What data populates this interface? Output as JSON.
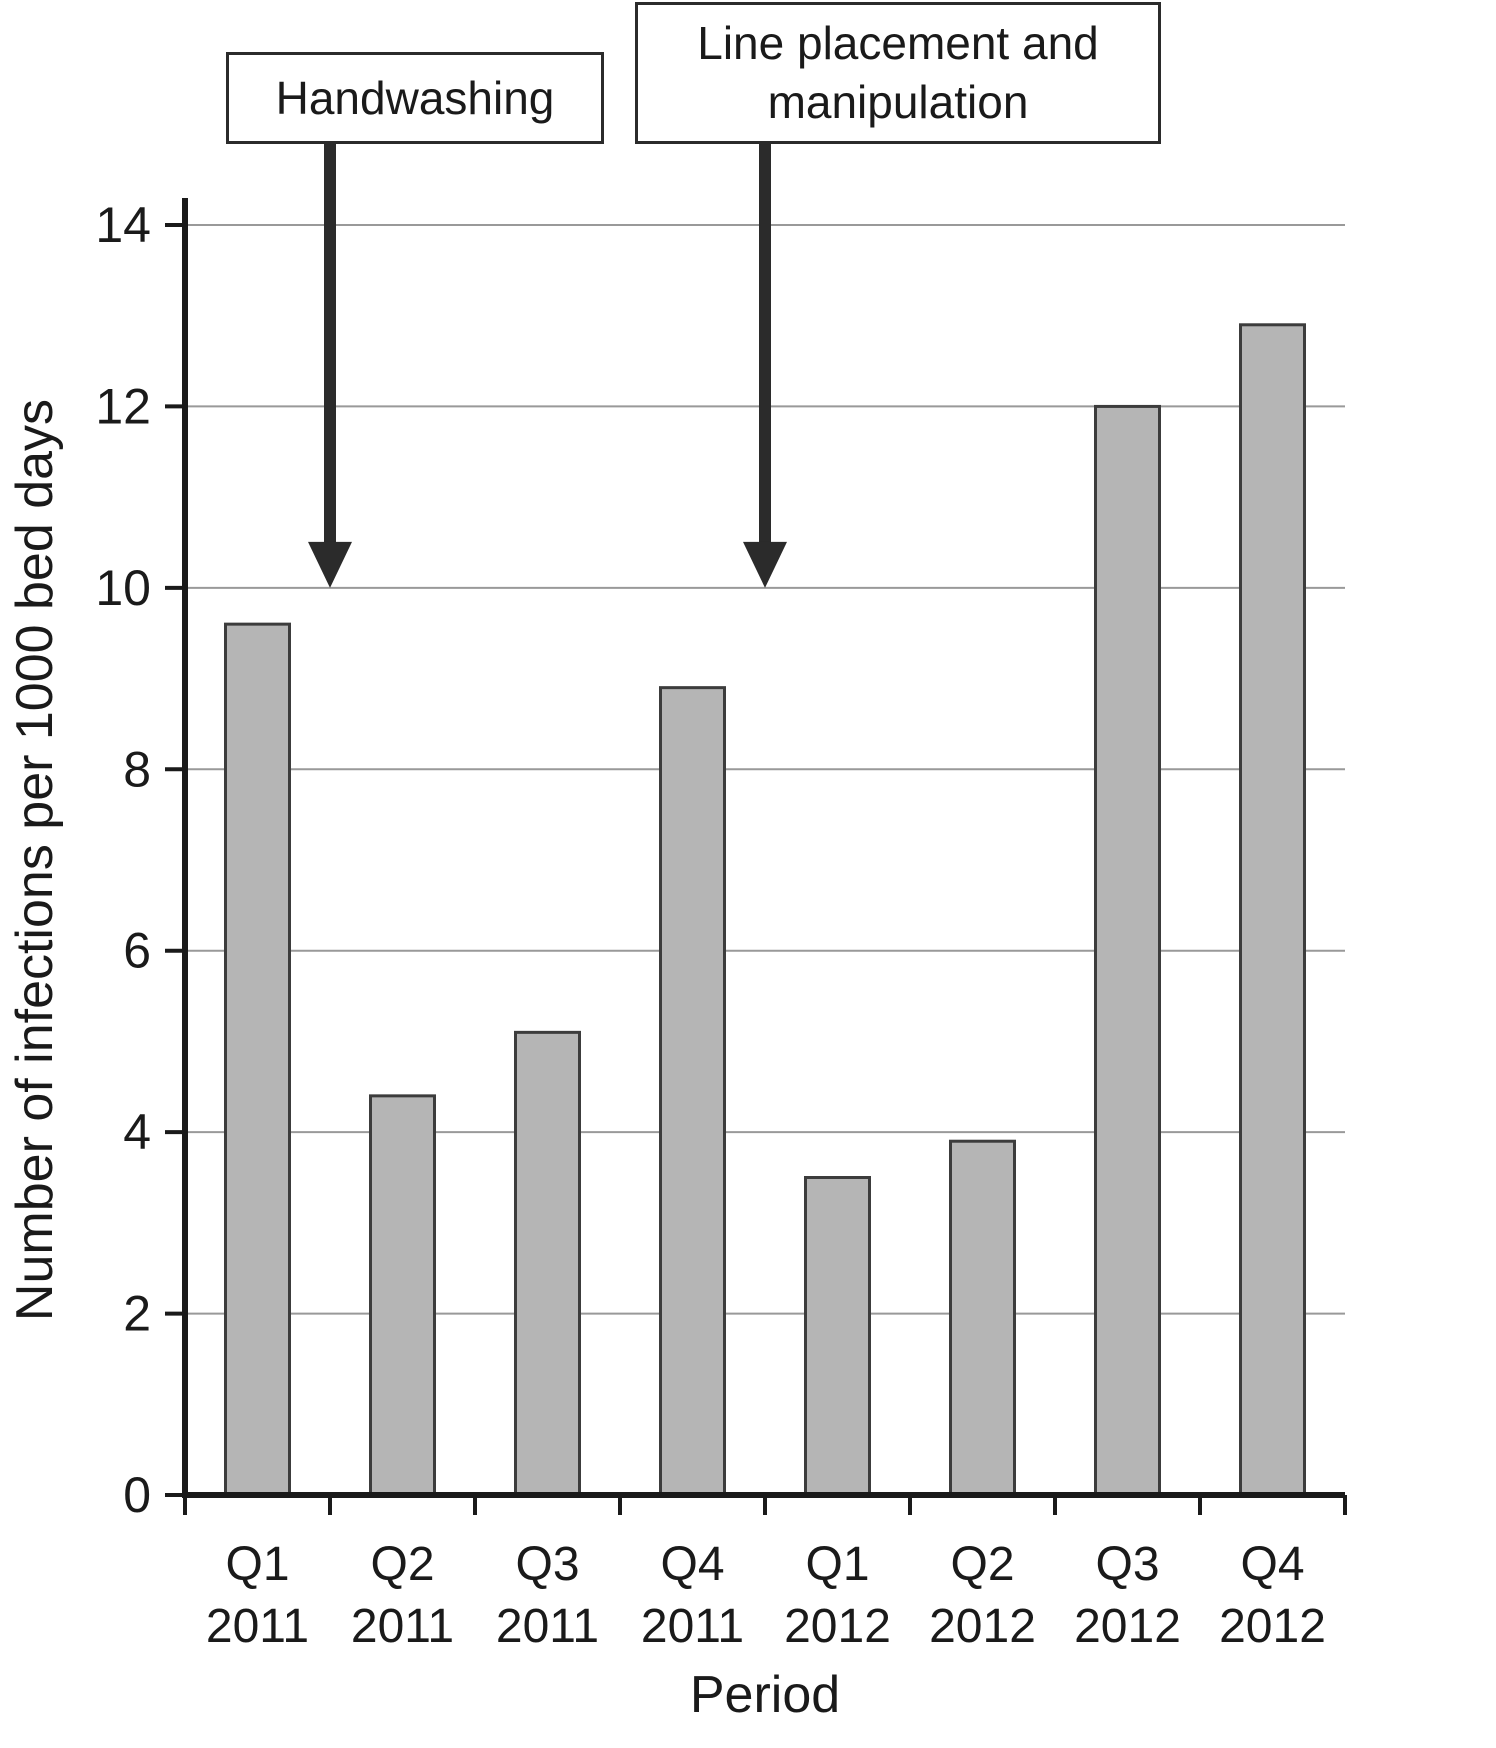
{
  "annotations": [
    {
      "label": "Handwashing",
      "boundary_index": 1,
      "arrow_tip_value": 10
    },
    {
      "label": "Line placement and\nmanipulation",
      "boundary_index": 4,
      "arrow_tip_value": 10
    }
  ],
  "chart_data": {
    "type": "bar",
    "title": "",
    "xlabel": "Period",
    "ylabel": "Number of infections per 1000 bed days",
    "categories": [
      "Q1 2011",
      "Q2 2011",
      "Q3 2011",
      "Q4 2011",
      "Q1 2012",
      "Q2 2012",
      "Q3 2012",
      "Q4 2012"
    ],
    "values": [
      9.6,
      4.4,
      5.1,
      8.9,
      3.5,
      3.9,
      12.0,
      12.9
    ],
    "ylim": [
      0,
      14
    ],
    "ytick_step": 2,
    "ytick_labels": [
      "0",
      "2",
      "4",
      "6",
      "8",
      "10",
      "12",
      "14"
    ],
    "grid": true,
    "legend": "none",
    "bar_fill": "#b5b5b5",
    "bar_stroke": "#3c3c3c",
    "axis_color": "#1a1a1a",
    "grid_color": "#999999",
    "arrow_color": "#2b2b2b"
  }
}
